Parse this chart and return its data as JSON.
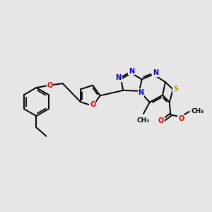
{
  "background_color": "#e6e6e6",
  "bond_color": "#000000",
  "bond_width": 1.4,
  "N_color": "#0000ee",
  "O_color": "#ee0000",
  "S_color": "#b8a000",
  "font_size": 7.0,
  "figsize": [
    3.0,
    3.0
  ],
  "dpi": 100,
  "xlim": [
    0,
    10
  ],
  "ylim": [
    0,
    10
  ]
}
